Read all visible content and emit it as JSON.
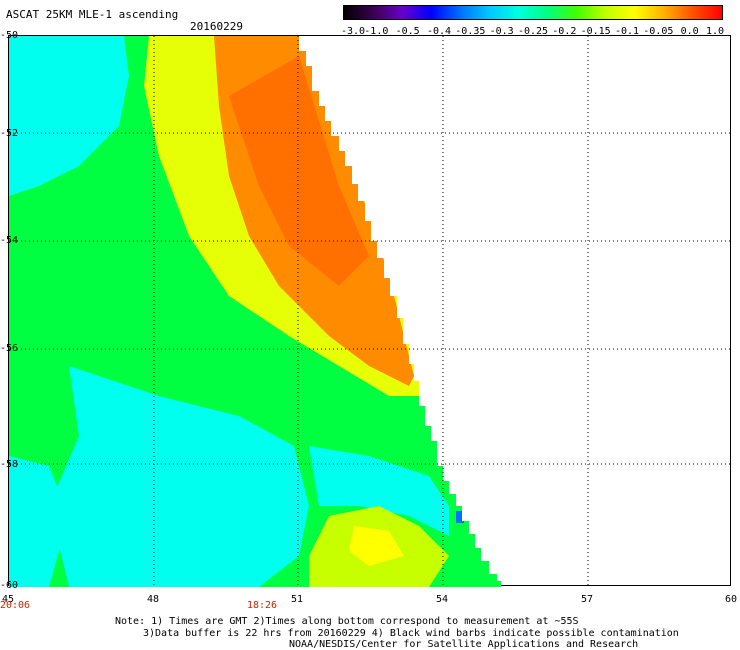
{
  "header": {
    "title": "ASCAT 25KM MLE-1 ascending",
    "date": "20160229"
  },
  "colorbar": {
    "ticks": [
      "-3.0",
      "-1.0",
      "-0.5",
      "-0.4",
      "-0.35",
      "-0.3",
      "-0.25",
      "-0.2",
      "-0.15",
      "-0.1",
      "-0.05",
      "0.0",
      "1.0"
    ],
    "colors": [
      "#000000",
      "#3a0050",
      "#6a00c8",
      "#0000ff",
      "#0070ff",
      "#00c8ff",
      "#00ffe0",
      "#00ff80",
      "#40ff00",
      "#c0ff00",
      "#ffff00",
      "#ffb000",
      "#ff5000",
      "#ff0000"
    ]
  },
  "axes": {
    "y_labels": [
      "-50",
      "-52",
      "-54",
      "-56",
      "-58",
      "-60"
    ],
    "x_labels": [
      "45",
      "48",
      "51",
      "54",
      "57",
      "60"
    ],
    "time_labels": [
      "20:06",
      "18:26"
    ]
  },
  "notes": {
    "line1": "Note: 1) Times are GMT 2)Times along bottom correspond to measurement at ~55S",
    "line2": "3)Data buffer is 22 hrs from 20160229 4) Black wind barbs indicate possible contamination",
    "line3": "NOAA/NESDIS/Center for Satellite Applications and Research"
  },
  "swath_colors": {
    "cyan": "#00ffee",
    "green": "#00ff40",
    "yellow": "#ffff00",
    "orange": "#ff8c00",
    "blue": "#0070ff"
  }
}
